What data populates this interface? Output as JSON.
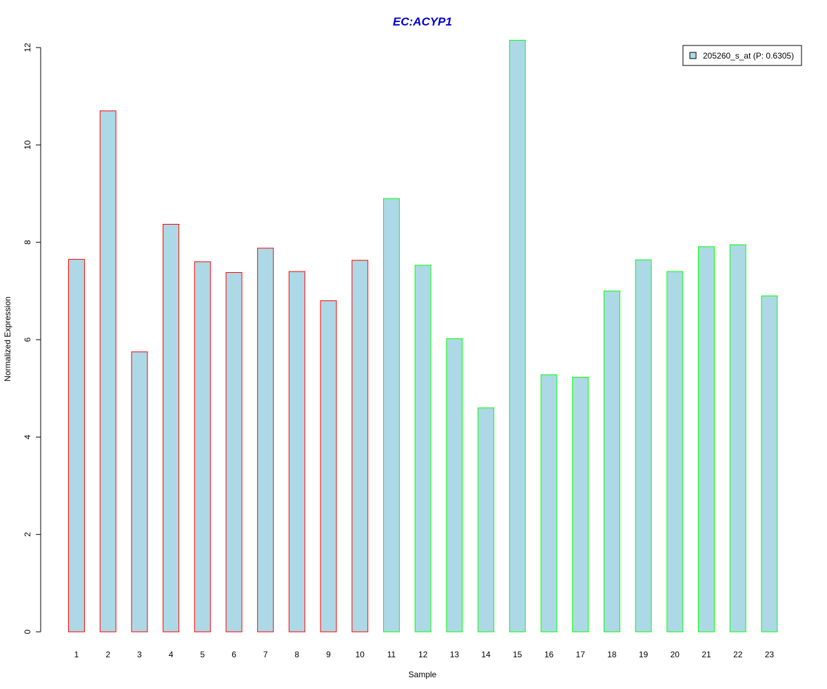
{
  "chart_data": {
    "type": "bar",
    "title": "EC:ACYP1",
    "title_color": "#0000CC",
    "xlabel": "Sample",
    "ylabel": "Normalized Expression",
    "ylim": [
      0,
      12
    ],
    "yticks": [
      0,
      2,
      4,
      6,
      8,
      10,
      12
    ],
    "grid": false,
    "categories": [
      "1",
      "2",
      "3",
      "4",
      "5",
      "6",
      "7",
      "8",
      "9",
      "10",
      "11",
      "12",
      "13",
      "14",
      "15",
      "16",
      "17",
      "18",
      "19",
      "20",
      "21",
      "22",
      "23"
    ],
    "series": [
      {
        "name": "205260_s_at (P: 0.6305)",
        "fill_color": "#ADD8E6",
        "values": [
          7.65,
          10.7,
          5.75,
          8.37,
          7.6,
          7.38,
          7.88,
          7.4,
          6.8,
          7.63,
          8.9,
          7.53,
          6.02,
          4.6,
          12.15,
          5.28,
          5.23,
          7.0,
          7.64,
          7.4,
          7.91,
          7.95,
          6.9
        ]
      }
    ],
    "bar_border_colors": [
      "#FF0000",
      "#FF0000",
      "#FF0000",
      "#FF0000",
      "#FF0000",
      "#FF0000",
      "#FF0000",
      "#FF0000",
      "#FF0000",
      "#FF0000",
      "#00FF00",
      "#00FF00",
      "#00FF00",
      "#00FF00",
      "#00FF00",
      "#00FF00",
      "#00FF00",
      "#00FF00",
      "#00FF00",
      "#00FF00",
      "#00FF00",
      "#00FF00",
      "#00FF00"
    ],
    "legend": {
      "position": "top-right",
      "label": "205260_s_at (P: 0.6305)"
    }
  }
}
